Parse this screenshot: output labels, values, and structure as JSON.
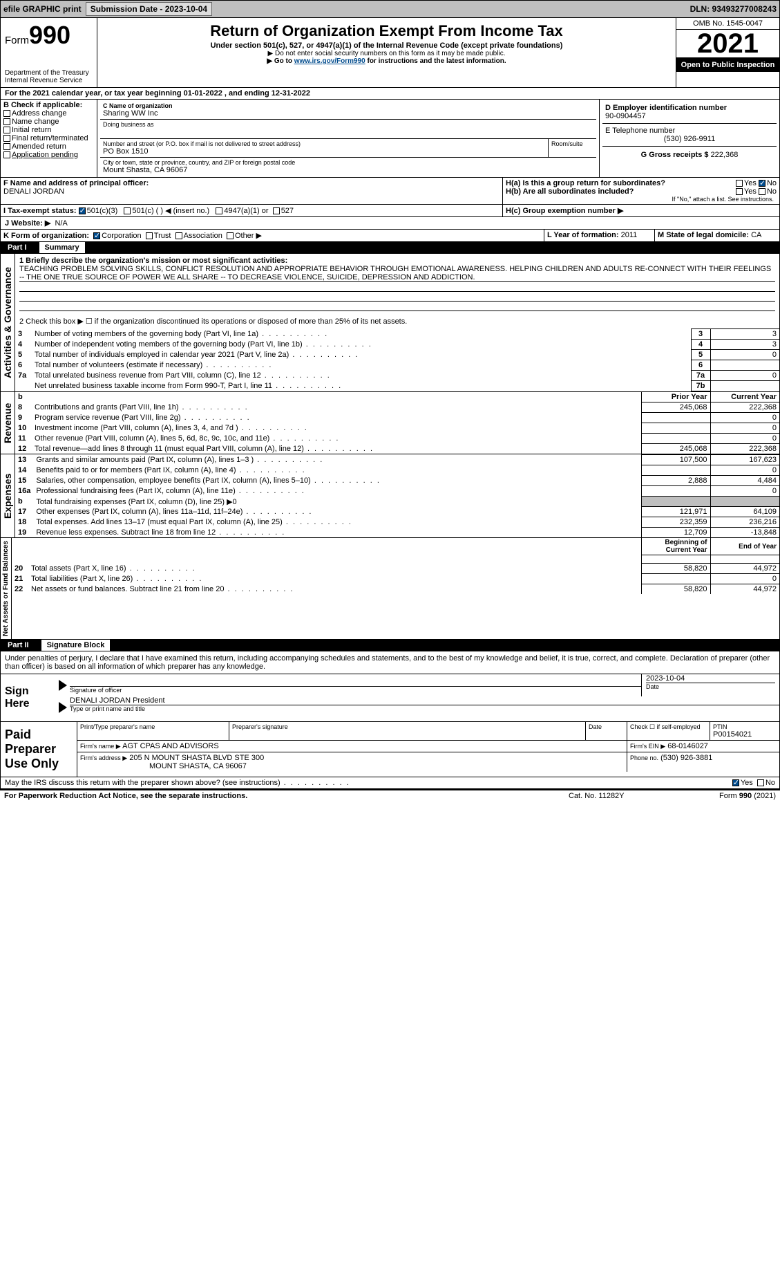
{
  "topbar": {
    "efile": "efile GRAPHIC print",
    "submission": "Submission Date - 2023-10-04",
    "dln": "DLN: 93493277008243"
  },
  "header": {
    "form_label": "Form",
    "form_num": "990",
    "dept": "Department of the Treasury",
    "irs": "Internal Revenue Service",
    "title": "Return of Organization Exempt From Income Tax",
    "subtitle": "Under section 501(c), 527, or 4947(a)(1) of the Internal Revenue Code (except private foundations)",
    "note1": "▶ Do not enter social security numbers on this form as it may be made public.",
    "note2": "▶ Go to www.irs.gov/Form990 for instructions and the latest information.",
    "omb": "OMB No. 1545-0047",
    "year": "2021",
    "open": "Open to Public Inspection"
  },
  "a": "For the 2021 calendar year, or tax year beginning 01-01-2022   , and ending 12-31-2022",
  "b": {
    "label": "B Check if applicable:",
    "items": [
      "Address change",
      "Name change",
      "Initial return",
      "Final return/terminated",
      "Amended return",
      "Application pending"
    ]
  },
  "c": {
    "label": "C Name of organization",
    "name": "Sharing WW Inc",
    "dba_label": "Doing business as",
    "addr_label": "Number and street (or P.O. box if mail is not delivered to street address)",
    "room_label": "Room/suite",
    "addr": "PO Box 1510",
    "city_label": "City or town, state or province, country, and ZIP or foreign postal code",
    "city": "Mount Shasta, CA  96067"
  },
  "d": {
    "label": "D Employer identification number",
    "val": "90-0904457"
  },
  "e": {
    "label": "E Telephone number",
    "val": "(530) 926-9911"
  },
  "g": {
    "label": "G Gross receipts $",
    "val": "222,368"
  },
  "f": {
    "label": "F  Name and address of principal officer:",
    "name": "DENALI JORDAN"
  },
  "h": {
    "a": "H(a)  Is this a group return for subordinates?",
    "b": "H(b)  Are all subordinates included?",
    "b2": "If \"No,\" attach a list. See instructions.",
    "c": "H(c)  Group exemption number ▶",
    "yes": "Yes",
    "no": "No"
  },
  "i": {
    "label": "I  Tax-exempt status:",
    "opts": [
      "501(c)(3)",
      "501(c) (  ) ◀ (insert no.)",
      "4947(a)(1) or",
      "527"
    ]
  },
  "j": {
    "label": "J  Website: ▶",
    "val": "N/A"
  },
  "k": {
    "label": "K Form of organization:",
    "opts": [
      "Corporation",
      "Trust",
      "Association",
      "Other ▶"
    ]
  },
  "l": {
    "label": "L Year of formation:",
    "val": "2011"
  },
  "m": {
    "label": "M State of legal domicile:",
    "val": "CA"
  },
  "part1": {
    "tag": "Part I",
    "title": "Summary",
    "l1_label": "1  Briefly describe the organization's mission or most significant activities:",
    "l1_text": "TEACHING PROBLEM SOLVING SKILLS, CONFLICT RESOLUTION AND APPROPRIATE BEHAVIOR THROUGH EMOTIONAL AWARENESS. HELPING CHILDREN AND ADULTS RE-CONNECT WITH THEIR FEELINGS -- THE ONE TRUE SOURCE OF POWER WE ALL SHARE -- TO DECREASE VIOLENCE, SUICIDE, DEPRESSION AND ADDICTION.",
    "l2": "2   Check this box ▶ ☐  if the organization discontinued its operations or disposed of more than 25% of its net assets.",
    "rows_idx": [
      {
        "n": "3",
        "t": "Number of voting members of the governing body (Part VI, line 1a)",
        "i": "3",
        "v": "3"
      },
      {
        "n": "4",
        "t": "Number of independent voting members of the governing body (Part VI, line 1b)",
        "i": "4",
        "v": "3"
      },
      {
        "n": "5",
        "t": "Total number of individuals employed in calendar year 2021 (Part V, line 2a)",
        "i": "5",
        "v": "0"
      },
      {
        "n": "6",
        "t": "Total number of volunteers (estimate if necessary)",
        "i": "6",
        "v": ""
      },
      {
        "n": "7a",
        "t": "Total unrelated business revenue from Part VIII, column (C), line 12",
        "i": "7a",
        "v": "0"
      },
      {
        "n": "",
        "t": "Net unrelated business taxable income from Form 990-T, Part I, line 11",
        "i": "7b",
        "v": ""
      }
    ],
    "col_prior": "Prior Year",
    "col_curr": "Current Year",
    "rev": [
      {
        "n": "8",
        "t": "Contributions and grants (Part VIII, line 1h)",
        "p": "245,068",
        "c": "222,368"
      },
      {
        "n": "9",
        "t": "Program service revenue (Part VIII, line 2g)",
        "p": "",
        "c": "0"
      },
      {
        "n": "10",
        "t": "Investment income (Part VIII, column (A), lines 3, 4, and 7d )",
        "p": "",
        "c": "0"
      },
      {
        "n": "11",
        "t": "Other revenue (Part VIII, column (A), lines 5, 6d, 8c, 9c, 10c, and 11e)",
        "p": "",
        "c": "0"
      },
      {
        "n": "12",
        "t": "Total revenue—add lines 8 through 11 (must equal Part VIII, column (A), line 12)",
        "p": "245,068",
        "c": "222,368"
      }
    ],
    "exp": [
      {
        "n": "13",
        "t": "Grants and similar amounts paid (Part IX, column (A), lines 1–3 )",
        "p": "107,500",
        "c": "167,623"
      },
      {
        "n": "14",
        "t": "Benefits paid to or for members (Part IX, column (A), line 4)",
        "p": "",
        "c": "0"
      },
      {
        "n": "15",
        "t": "Salaries, other compensation, employee benefits (Part IX, column (A), lines 5–10)",
        "p": "2,888",
        "c": "4,484"
      },
      {
        "n": "16a",
        "t": "Professional fundraising fees (Part IX, column (A), line 11e)",
        "p": "",
        "c": "0"
      },
      {
        "n": "b",
        "t": "Total fundraising expenses (Part IX, column (D), line 25) ▶0",
        "shade": true
      },
      {
        "n": "17",
        "t": "Other expenses (Part IX, column (A), lines 11a–11d, 11f–24e)",
        "p": "121,971",
        "c": "64,109"
      },
      {
        "n": "18",
        "t": "Total expenses. Add lines 13–17 (must equal Part IX, column (A), line 25)",
        "p": "232,359",
        "c": "236,216"
      },
      {
        "n": "19",
        "t": "Revenue less expenses. Subtract line 18 from line 12",
        "p": "12,709",
        "c": "-13,848"
      }
    ],
    "col_begin": "Beginning of Current Year",
    "col_end": "End of Year",
    "net": [
      {
        "n": "20",
        "t": "Total assets (Part X, line 16)",
        "p": "58,820",
        "c": "44,972"
      },
      {
        "n": "21",
        "t": "Total liabilities (Part X, line 26)",
        "p": "",
        "c": "0"
      },
      {
        "n": "22",
        "t": "Net assets or fund balances. Subtract line 21 from line 20",
        "p": "58,820",
        "c": "44,972"
      }
    ],
    "vlabels": {
      "gov": "Activities & Governance",
      "rev": "Revenue",
      "exp": "Expenses",
      "net": "Net Assets or Fund Balances"
    }
  },
  "part2": {
    "tag": "Part II",
    "title": "Signature Block",
    "penalty": "Under penalties of perjury, I declare that I have examined this return, including accompanying schedules and statements, and to the best of my knowledge and belief, it is true, correct, and complete. Declaration of preparer (other than officer) is based on all information of which preparer has any knowledge.",
    "sign_here": "Sign Here",
    "sig_officer": "Signature of officer",
    "date": "Date",
    "sig_date": "2023-10-04",
    "name_title": "DENALI JORDAN  President",
    "name_title_label": "Type or print name and title",
    "paid": "Paid Preparer Use Only",
    "cols": {
      "pname": "Print/Type preparer's name",
      "psig": "Preparer's signature",
      "pdate": "Date",
      "pcheck": "Check ☐ if self-employed",
      "ptin": "PTIN",
      "ptin_val": "P00154021"
    },
    "firm_name_label": "Firm's name    ▶",
    "firm_name": "AGT CPAS AND ADVISORS",
    "firm_ein_label": "Firm's EIN ▶",
    "firm_ein": "68-0146027",
    "firm_addr_label": "Firm's address ▶",
    "firm_addr1": "205 N MOUNT SHASTA BLVD STE 300",
    "firm_addr2": "MOUNT SHASTA, CA  96067",
    "phone_label": "Phone no.",
    "phone": "(530) 926-3881",
    "discuss": "May the IRS discuss this return with the preparer shown above? (see instructions)",
    "yes": "Yes",
    "no": "No"
  },
  "footer": {
    "pra": "For Paperwork Reduction Act Notice, see the separate instructions.",
    "cat": "Cat. No. 11282Y",
    "form": "Form 990 (2021)"
  }
}
